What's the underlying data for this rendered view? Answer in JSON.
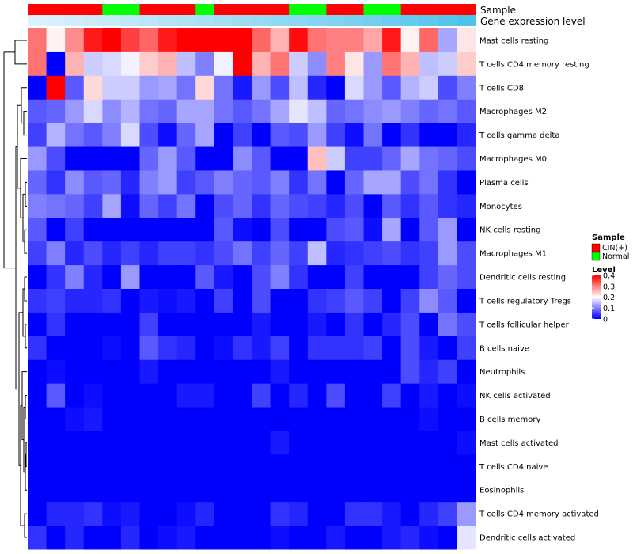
{
  "chart_data": {
    "type": "heatmap",
    "title": "",
    "columns": 24,
    "annotations": {
      "sample": {
        "label": "Sample",
        "values": [
          "CIN(+)",
          "CIN(+)",
          "CIN(+)",
          "CIN(+)",
          "Normal",
          "Normal",
          "CIN(+)",
          "CIN(+)",
          "CIN(+)",
          "Normal",
          "CIN(+)",
          "CIN(+)",
          "CIN(+)",
          "CIN(+)",
          "Normal",
          "Normal",
          "CIN(+)",
          "CIN(+)",
          "Normal",
          "Normal",
          "CIN(+)",
          "CIN(+)",
          "CIN(+)",
          "CIN(+)"
        ]
      },
      "expression": {
        "label": "Gene expression level",
        "values": [
          0.02,
          0.06,
          0.1,
          0.14,
          0.18,
          0.22,
          0.26,
          0.3,
          0.34,
          0.38,
          0.42,
          0.46,
          0.5,
          0.54,
          0.58,
          0.62,
          0.66,
          0.7,
          0.74,
          0.78,
          0.84,
          0.9,
          0.96,
          1.0
        ]
      }
    },
    "rows": [
      {
        "label": "Mast cells resting",
        "values": [
          0.31,
          0.21,
          0.29,
          0.38,
          0.4,
          0.35,
          0.32,
          0.38,
          0.4,
          0.4,
          0.4,
          0.4,
          0.32,
          0.26,
          0.39,
          0.31,
          0.3,
          0.3,
          0.27,
          0.38,
          0.21,
          0.32,
          0.13,
          0.22
        ]
      },
      {
        "label": "T cells CD4 memory resting",
        "values": [
          0.31,
          0.0,
          0.26,
          0.16,
          0.17,
          0.19,
          0.24,
          0.26,
          0.15,
          0.1,
          0.19,
          0.4,
          0.26,
          0.31,
          0.16,
          0.11,
          0.3,
          0.22,
          0.12,
          0.31,
          0.26,
          0.15,
          0.16,
          0.24
        ]
      },
      {
        "label": "T cells CD8",
        "values": [
          0.0,
          0.4,
          0.07,
          0.23,
          0.16,
          0.16,
          0.12,
          0.13,
          0.09,
          0.23,
          0.09,
          0.02,
          0.12,
          0.06,
          0.15,
          0.03,
          0.0,
          0.17,
          0.12,
          0.07,
          0.14,
          0.16,
          0.06,
          0.1
        ]
      },
      {
        "label": "Macrophages M2",
        "values": [
          0.07,
          0.08,
          0.12,
          0.17,
          0.11,
          0.14,
          0.09,
          0.08,
          0.13,
          0.13,
          0.09,
          0.07,
          0.09,
          0.13,
          0.18,
          0.15,
          0.08,
          0.09,
          0.11,
          0.12,
          0.1,
          0.08,
          0.09,
          0.07
        ]
      },
      {
        "label": "T cells gamma delta",
        "values": [
          0.05,
          0.14,
          0.09,
          0.07,
          0.1,
          0.17,
          0.06,
          0.01,
          0.08,
          0.13,
          0.0,
          0.05,
          0.0,
          0.07,
          0.06,
          0.12,
          0.05,
          0.01,
          0.09,
          0.0,
          0.04,
          0.0,
          0.0,
          0.03
        ]
      },
      {
        "label": "Macrophages M0",
        "values": [
          0.12,
          0.06,
          0.0,
          0.0,
          0.0,
          0.0,
          0.08,
          0.12,
          0.07,
          0.0,
          0.0,
          0.11,
          0.07,
          0.0,
          0.0,
          0.25,
          0.16,
          0.05,
          0.05,
          0.08,
          0.13,
          0.09,
          0.08,
          0.06
        ]
      },
      {
        "label": "Plasma cells",
        "values": [
          0.08,
          0.04,
          0.11,
          0.07,
          0.08,
          0.03,
          0.1,
          0.12,
          0.05,
          0.07,
          0.1,
          0.08,
          0.07,
          0.1,
          0.04,
          0.09,
          0.0,
          0.08,
          0.13,
          0.13,
          0.06,
          0.09,
          0.04,
          0.0
        ]
      },
      {
        "label": "Monocytes",
        "values": [
          0.1,
          0.09,
          0.08,
          0.05,
          0.13,
          0.01,
          0.08,
          0.05,
          0.09,
          0.0,
          0.06,
          0.08,
          0.04,
          0.08,
          0.06,
          0.05,
          0.03,
          0.06,
          0.0,
          0.07,
          0.04,
          0.07,
          0.04,
          0.03
        ]
      },
      {
        "label": "NK cells resting",
        "values": [
          0.07,
          0.0,
          0.05,
          0.0,
          0.0,
          0.0,
          0.0,
          0.0,
          0.0,
          0.0,
          0.07,
          0.01,
          0.0,
          0.06,
          0.0,
          0.0,
          0.06,
          0.07,
          0.01,
          0.13,
          0.0,
          0.07,
          0.12,
          0.0
        ]
      },
      {
        "label": "Macrophages M1",
        "values": [
          0.05,
          0.1,
          0.03,
          0.06,
          0.03,
          0.05,
          0.03,
          0.05,
          0.05,
          0.04,
          0.06,
          0.09,
          0.05,
          0.08,
          0.05,
          0.15,
          0.03,
          0.04,
          0.05,
          0.06,
          0.04,
          0.05,
          0.12,
          0.06
        ]
      },
      {
        "label": "Dendritic cells resting",
        "values": [
          0.0,
          0.04,
          0.1,
          0.03,
          0.0,
          0.12,
          0.0,
          0.0,
          0.0,
          0.07,
          0.02,
          0.0,
          0.06,
          0.1,
          0.04,
          0.0,
          0.0,
          0.05,
          0.0,
          0.0,
          0.0,
          0.05,
          0.08,
          0.06
        ]
      },
      {
        "label": "T cells regulatory  Tregs",
        "values": [
          0.04,
          0.05,
          0.03,
          0.03,
          0.04,
          0.0,
          0.02,
          0.01,
          0.02,
          0.0,
          0.05,
          0.0,
          0.06,
          0.0,
          0.0,
          0.04,
          0.05,
          0.07,
          0.05,
          0.0,
          0.05,
          0.11,
          0.07,
          0.0
        ]
      },
      {
        "label": "T cells follicular helper",
        "values": [
          0.0,
          0.04,
          0.0,
          0.0,
          0.0,
          0.0,
          0.05,
          0.0,
          0.0,
          0.0,
          0.0,
          0.0,
          0.02,
          0.0,
          0.0,
          0.02,
          0.0,
          0.04,
          0.0,
          0.03,
          0.06,
          0.0,
          0.09,
          0.06
        ]
      },
      {
        "label": "B cells naive",
        "values": [
          0.04,
          0.0,
          0.0,
          0.0,
          0.01,
          0.0,
          0.07,
          0.04,
          0.03,
          0.0,
          0.01,
          0.04,
          0.02,
          0.05,
          0.0,
          0.04,
          0.04,
          0.04,
          0.05,
          0.0,
          0.06,
          0.02,
          0.0,
          0.05
        ]
      },
      {
        "label": "Neutrophils",
        "values": [
          0.0,
          0.01,
          0.0,
          0.0,
          0.0,
          0.0,
          0.02,
          0.0,
          0.0,
          0.0,
          0.0,
          0.0,
          0.0,
          0.02,
          0.0,
          0.0,
          0.0,
          0.0,
          0.0,
          0.0,
          0.06,
          0.03,
          0.05,
          0.0
        ]
      },
      {
        "label": "NK cells activated",
        "values": [
          0.0,
          0.07,
          0.0,
          0.01,
          0.0,
          0.0,
          0.0,
          0.0,
          0.02,
          0.02,
          0.0,
          0.0,
          0.05,
          0.0,
          0.03,
          0.0,
          0.06,
          0.0,
          0.0,
          0.05,
          0.0,
          0.02,
          0.0,
          0.01
        ]
      },
      {
        "label": "B cells memory",
        "values": [
          0.0,
          0.0,
          0.01,
          0.02,
          0.0,
          0.0,
          0.0,
          0.0,
          0.0,
          0.0,
          0.0,
          0.0,
          0.0,
          0.0,
          0.0,
          0.0,
          0.0,
          0.0,
          0.0,
          0.0,
          0.0,
          0.01,
          0.0,
          0.0
        ]
      },
      {
        "label": "Mast cells activated",
        "values": [
          0.0,
          0.0,
          0.0,
          0.0,
          0.0,
          0.0,
          0.0,
          0.0,
          0.0,
          0.0,
          0.0,
          0.0,
          0.0,
          0.02,
          0.0,
          0.0,
          0.0,
          0.0,
          0.0,
          0.0,
          0.0,
          0.0,
          0.0,
          0.01
        ]
      },
      {
        "label": "T cells CD4 naive",
        "values": [
          0.0,
          0.0,
          0.0,
          0.0,
          0.0,
          0.0,
          0.0,
          0.0,
          0.0,
          0.0,
          0.0,
          0.0,
          0.0,
          0.0,
          0.0,
          0.0,
          0.0,
          0.0,
          0.0,
          0.0,
          0.0,
          0.0,
          0.0,
          0.0
        ]
      },
      {
        "label": "Eosinophils",
        "values": [
          0.0,
          0.0,
          0.0,
          0.0,
          0.0,
          0.0,
          0.0,
          0.0,
          0.0,
          0.0,
          0.0,
          0.0,
          0.0,
          0.0,
          0.0,
          0.0,
          0.0,
          0.0,
          0.0,
          0.0,
          0.0,
          0.0,
          0.0,
          0.0
        ]
      },
      {
        "label": "T cells CD4 memory activated",
        "values": [
          0.0,
          0.03,
          0.03,
          0.04,
          0.01,
          0.02,
          0.0,
          0.0,
          0.01,
          0.03,
          0.0,
          0.0,
          0.0,
          0.04,
          0.03,
          0.0,
          0.0,
          0.04,
          0.04,
          0.02,
          0.0,
          0.03,
          0.05,
          0.12
        ]
      },
      {
        "label": "Dendritic cells activated",
        "values": [
          0.04,
          0.0,
          0.03,
          0.0,
          0.0,
          0.03,
          0.0,
          0.01,
          0.02,
          0.0,
          0.0,
          0.0,
          0.0,
          0.01,
          0.0,
          0.0,
          0.02,
          0.0,
          0.0,
          0.02,
          0.03,
          0.01,
          0.0,
          0.18
        ]
      }
    ],
    "legend": {
      "sample_title": "Sample",
      "sample_entries": [
        {
          "label": "CIN(+)",
          "color": "#ff0000"
        },
        {
          "label": "Normal",
          "color": "#00ff00"
        }
      ],
      "level_title": "Level",
      "level_ticks": [
        {
          "value": 0.4,
          "label": "0.4"
        },
        {
          "value": 0.3,
          "label": "0.3"
        },
        {
          "value": 0.2,
          "label": "0.2"
        },
        {
          "value": 0.1,
          "label": "0.1"
        },
        {
          "value": 0,
          "label": "0"
        }
      ],
      "range": [
        0,
        0.4
      ]
    },
    "colors": {
      "low": "#0000ff",
      "mid": "#ffffff",
      "high": "#ff0000",
      "expression_low": "#e0f2fb",
      "expression_high": "#4ec3ea"
    }
  }
}
